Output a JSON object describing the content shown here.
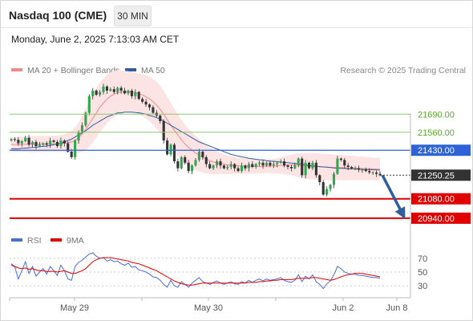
{
  "header": {
    "title": "Nasdaq 100 (CME)",
    "timeframe": "30 MIN",
    "datetime": "Monday, June 2, 2025 7:13:03 AM CET"
  },
  "legend": {
    "items": [
      {
        "label": "MA 20 + Bollinger Bands",
        "color": "#f08a8a"
      },
      {
        "label": "MA 50",
        "color": "#2f5d9e"
      }
    ],
    "credit": "Research © 2025 Trading Central"
  },
  "chart_data": {
    "type": "line",
    "price_panel": {
      "ylim": [
        20870,
        21900
      ],
      "levels": [
        {
          "value": 21690,
          "label": "21690.00",
          "style": "resistance",
          "color": "#8dc86f"
        },
        {
          "value": 21560,
          "label": "21560.00",
          "style": "resistance",
          "color": "#8dc86f"
        },
        {
          "value": 21430,
          "label": "21430.00",
          "style": "pivot",
          "color": "#2d63d6"
        },
        {
          "value": 21250.25,
          "label": "21250.25",
          "style": "last",
          "color": "#333333"
        },
        {
          "value": 21080,
          "label": "21080.00",
          "style": "support",
          "color": "#e00000"
        },
        {
          "value": 20940,
          "label": "20940.00",
          "style": "support",
          "color": "#e00000"
        }
      ],
      "close": [
        21510,
        21505,
        21480,
        21495,
        21520,
        21470,
        21490,
        21460,
        21470,
        21480,
        21470,
        21500,
        21490,
        21460,
        21500,
        21480,
        21420,
        21380,
        21500,
        21560,
        21610,
        21700,
        21820,
        21860,
        21830,
        21850,
        21890,
        21860,
        21870,
        21850,
        21880,
        21860,
        21840,
        21860,
        21820,
        21850,
        21800,
        21780,
        21760,
        21740,
        21700,
        21680,
        21640,
        21500,
        21400,
        21470,
        21350,
        21300,
        21380,
        21340,
        21280,
        21320,
        21360,
        21420,
        21380,
        21330,
        21300,
        21320,
        21350,
        21320,
        21300,
        21310,
        21330,
        21300,
        21280,
        21320,
        21300,
        21330,
        21310,
        21330,
        21340,
        21320,
        21340,
        21320,
        21330,
        21340,
        21350,
        21320,
        21310,
        21300,
        21320,
        21370,
        21250,
        21340,
        21300,
        21340,
        21250,
        21200,
        21110,
        21150,
        21180,
        21260,
        21370,
        21360,
        21320,
        21310,
        21300,
        21300,
        21290,
        21290,
        21280,
        21270,
        21270,
        21260,
        21250
      ],
      "ma50": [
        21440,
        21440,
        21440,
        21445,
        21445,
        21448,
        21450,
        21452,
        21455,
        21458,
        21460,
        21465,
        21470,
        21475,
        21480,
        21490,
        21500,
        21510,
        21525,
        21540,
        21555,
        21570,
        21590,
        21610,
        21625,
        21640,
        21655,
        21670,
        21680,
        21690,
        21700,
        21700,
        21705,
        21705,
        21705,
        21702,
        21700,
        21695,
        21690,
        21680,
        21675,
        21665,
        21655,
        21640,
        21625,
        21610,
        21595,
        21580,
        21565,
        21550,
        21535,
        21520,
        21505,
        21490,
        21480,
        21470,
        21460,
        21450,
        21440,
        21430,
        21420,
        21410,
        21400,
        21395,
        21388,
        21382,
        21378,
        21372,
        21368,
        21365,
        21362,
        21360,
        21355,
        21352,
        21350,
        21348,
        21345,
        21342,
        21340,
        21338,
        21335,
        21333,
        21330,
        21325,
        21320,
        21318,
        21315,
        21312,
        21310,
        21308,
        21305,
        21302,
        21300,
        21300,
        21298,
        21296,
        21295,
        21294,
        21293,
        21292,
        21291,
        21290,
        21289,
        21288,
        21287
      ],
      "ma20": [
        21470,
        21472,
        21472,
        21472,
        21473,
        21473,
        21474,
        21474,
        21475,
        21475,
        21475,
        21476,
        21476,
        21477,
        21478,
        21480,
        21485,
        21490,
        21500,
        21520,
        21550,
        21580,
        21620,
        21660,
        21700,
        21740,
        21770,
        21800,
        21820,
        21835,
        21845,
        21850,
        21852,
        21852,
        21850,
        21845,
        21838,
        21828,
        21815,
        21800,
        21780,
        21755,
        21725,
        21690,
        21650,
        21610,
        21575,
        21540,
        21505,
        21475,
        21450,
        21430,
        21410,
        21395,
        21380,
        21365,
        21355,
        21345,
        21340,
        21335,
        21330,
        21325,
        21322,
        21320,
        21318,
        21316,
        21315,
        21314,
        21314,
        21313,
        21313,
        21314,
        21315,
        21316,
        21317,
        21318,
        21320,
        21322,
        21323,
        21324,
        21325,
        21322,
        21320,
        21318,
        21316,
        21315,
        21313,
        21311,
        21309,
        21308,
        21307,
        21306,
        21306,
        21305,
        21304,
        21303,
        21302,
        21301,
        21300,
        21299,
        21298,
        21297,
        21296,
        21295,
        21294
      ],
      "bb_width": [
        50,
        52,
        54,
        55,
        56,
        57,
        58,
        58,
        58,
        58,
        58,
        58,
        58,
        58,
        60,
        65,
        70,
        80,
        95,
        110,
        130,
        150,
        165,
        175,
        180,
        180,
        178,
        175,
        170,
        165,
        160,
        155,
        150,
        148,
        145,
        145,
        145,
        150,
        155,
        160,
        165,
        170,
        170,
        168,
        165,
        160,
        155,
        150,
        145,
        140,
        135,
        130,
        125,
        118,
        110,
        102,
        95,
        88,
        82,
        76,
        72,
        68,
        64,
        60,
        58,
        56,
        55,
        54,
        52,
        50,
        50,
        50,
        50,
        50,
        52,
        55,
        60,
        65,
        70,
        75,
        80,
        85,
        90,
        92,
        94,
        95,
        96,
        96,
        96,
        95,
        94,
        93,
        92,
        91,
        90,
        89,
        88,
        87,
        86,
        85,
        84,
        83,
        82,
        81,
        80
      ],
      "projection": {
        "from": 21250,
        "to": 20950
      }
    },
    "rsi_panel": {
      "ylim": [
        15,
        85
      ],
      "ticks": [
        70,
        50,
        30
      ],
      "legend": [
        {
          "label": "RSI",
          "color": "#4a6fd1"
        },
        {
          "label": "9MA",
          "color": "#e00000"
        }
      ],
      "rsi": [
        62,
        58,
        40,
        52,
        65,
        48,
        58,
        44,
        50,
        55,
        47,
        58,
        52,
        45,
        60,
        52,
        40,
        38,
        58,
        64,
        67,
        72,
        76,
        78,
        73,
        70,
        71,
        66,
        68,
        65,
        66,
        62,
        60,
        63,
        57,
        58,
        53,
        52,
        50,
        47,
        43,
        42,
        38,
        32,
        28,
        38,
        30,
        28,
        36,
        32,
        28,
        34,
        38,
        42,
        36,
        34,
        32,
        35,
        37,
        34,
        32,
        34,
        36,
        33,
        32,
        36,
        34,
        38,
        35,
        38,
        40,
        37,
        40,
        38,
        39,
        40,
        42,
        38,
        36,
        35,
        38,
        46,
        36,
        44,
        40,
        46,
        36,
        32,
        26,
        33,
        37,
        46,
        58,
        55,
        50,
        48,
        47,
        47,
        45,
        45,
        44,
        43,
        42,
        42,
        41
      ],
      "ma9": [
        60,
        58,
        56,
        55,
        56,
        54,
        55,
        53,
        52,
        52,
        51,
        51,
        51,
        50,
        51,
        52,
        50,
        48,
        48,
        50,
        52,
        55,
        60,
        65,
        68,
        70,
        71,
        71,
        71,
        70,
        69,
        68,
        67,
        66,
        64,
        63,
        62,
        60,
        58,
        56,
        54,
        52,
        49,
        46,
        43,
        40,
        37,
        35,
        33,
        32,
        31,
        31,
        32,
        33,
        34,
        34,
        34,
        34,
        34,
        34,
        34,
        34,
        34,
        34,
        34,
        34,
        34,
        35,
        35,
        35,
        36,
        36,
        37,
        37,
        38,
        38,
        39,
        39,
        39,
        39,
        40,
        41,
        41,
        41,
        41,
        42,
        42,
        41,
        40,
        39,
        38,
        39,
        41,
        43,
        45,
        46,
        47,
        48,
        48,
        48,
        47,
        46,
        45,
        44,
        43
      ]
    },
    "x_ticks": [
      "May 29",
      "May 30",
      "Jun 2",
      "Jun 8"
    ]
  }
}
